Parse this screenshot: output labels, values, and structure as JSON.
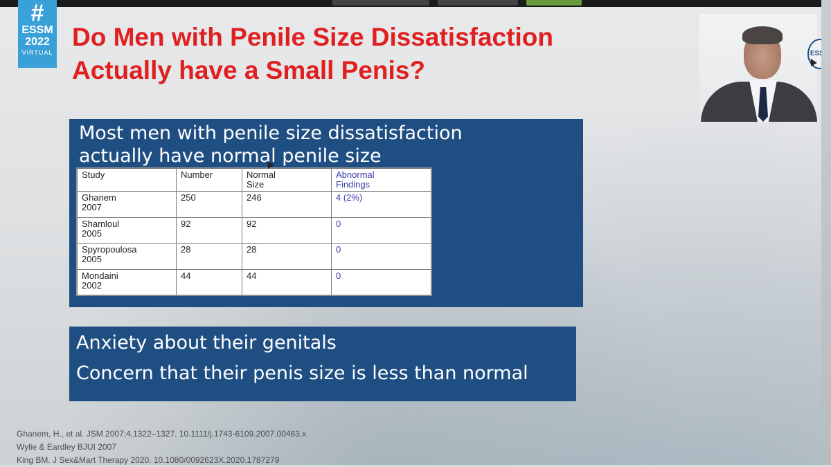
{
  "logo": {
    "hash": "#",
    "line1": "ESSM",
    "line2": "2022",
    "line3": "VIRTUAL"
  },
  "slide": {
    "title_line1": "Do Men with Penile Size Dissatisfaction",
    "title_line2": "Actually have a Small Penis?",
    "box1_heading_line1": "Most men with penile size dissatisfaction",
    "box1_heading_line2": "actually have normal penile size",
    "table": {
      "headers": [
        "Study",
        "Number",
        "Normal\nSize",
        "Abnormal\nFindings"
      ],
      "rows": [
        [
          "Ghanem\n2007",
          "250",
          "246",
          "4 (2%)"
        ],
        [
          "Shamloul\n2005",
          "92",
          "92",
          "0"
        ],
        [
          "Spyropoulosa\n2005",
          "28",
          "28",
          "0"
        ],
        [
          "Mondaini\n2002",
          "44",
          "44",
          "0"
        ]
      ]
    },
    "box2_line1": "Anxiety about their genitals",
    "box2_line2": "Concern that their penis size is less than normal",
    "references": [
      "Ghanem, H., et al. JSM  2007;4,1322–1327. 10.1111/j.1743-6109.2007.00463.x.",
      "Wylie & Eardley BJUI 2007",
      "King BM. J Sex&Mart Therapy 2020. 10.1080/0092623X.2020.1787279"
    ]
  },
  "webcam": {
    "logo_text": "ESSM"
  },
  "colors": {
    "title": "#e02020",
    "box_blue": "#1f4f82",
    "logo_blue": "#3aa0d8",
    "abnormal_text": "#3a3aa8"
  }
}
